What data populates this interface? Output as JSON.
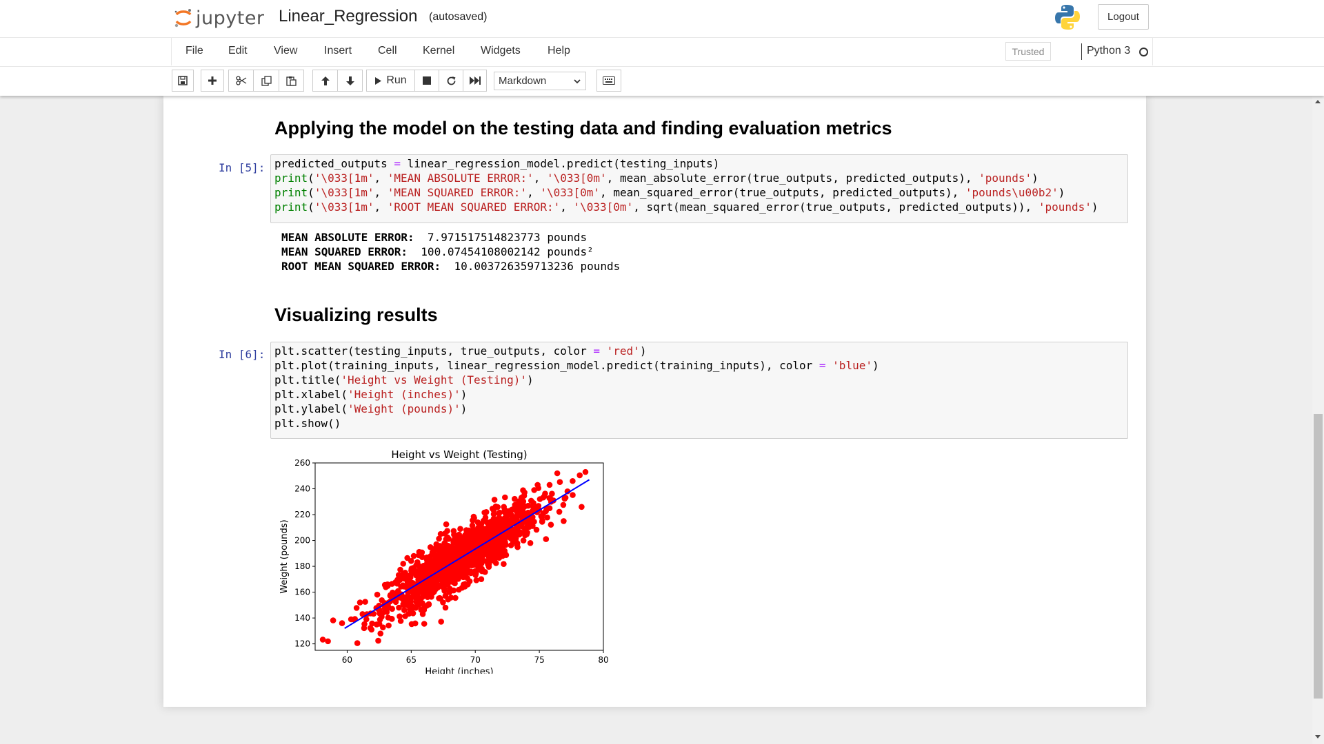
{
  "header": {
    "logo_text": "jupyter",
    "notebook_name": "Linear_Regression",
    "autosave_status": "(autosaved)",
    "logout_label": "Logout"
  },
  "menubar": {
    "items": [
      "File",
      "Edit",
      "View",
      "Insert",
      "Cell",
      "Kernel",
      "Widgets",
      "Help"
    ],
    "trusted_label": "Trusted",
    "kernel_name": "Python 3"
  },
  "toolbar": {
    "run_label": "Run",
    "cell_type": "Markdown"
  },
  "cells": {
    "heading1": "Applying the model on the testing data and finding evaluation metrics",
    "cell5": {
      "prompt": "In [5]:",
      "output": [
        {
          "label": "MEAN ABSOLUTE ERROR:",
          "value": "7.971517514823773 pounds"
        },
        {
          "label": "MEAN SQUARED ERROR:",
          "value": "100.07454108002142 pounds²"
        },
        {
          "label": "ROOT MEAN SQUARED ERROR:",
          "value": "10.003726359713236 pounds"
        }
      ]
    },
    "heading2": "Visualizing results",
    "cell6": {
      "prompt": "In [6]:"
    }
  },
  "icons": {
    "save": "save-icon",
    "add": "plus-icon",
    "cut": "scissors-icon",
    "copy": "copy-icon",
    "paste": "paste-icon",
    "up": "arrow-up-icon",
    "down": "arrow-down-icon",
    "run": "play-icon",
    "stop": "stop-icon",
    "restart": "restart-icon",
    "fast_forward": "fast-forward-icon",
    "keyboard": "keyboard-icon"
  },
  "colors": {
    "scatter": "#ff0000",
    "line": "#0000ff",
    "prompt": "#303f9f",
    "string": "#ba2121",
    "builtin": "#008000",
    "operator": "#aa22ff"
  },
  "chart_data": {
    "type": "scatter",
    "title": "Height vs Weight (Testing)",
    "xlabel": "Height (inches)",
    "ylabel": "Weight (pounds)",
    "xlim": [
      57.5,
      80
    ],
    "ylim": [
      115,
      260
    ],
    "xticks": [
      60,
      65,
      70,
      75,
      80
    ],
    "yticks": [
      120,
      140,
      160,
      180,
      200,
      220,
      240,
      260
    ],
    "grid": false,
    "series": [
      {
        "kind": "scatter",
        "color": "#ff0000",
        "points": [
          [
            58.5,
            122
          ],
          [
            59.6,
            136
          ],
          [
            61,
            152
          ],
          [
            61.2,
            143
          ],
          [
            61.5,
            139
          ],
          [
            61.9,
            131
          ],
          [
            62.3,
            135
          ],
          [
            62.6,
            128
          ],
          [
            78.3,
            226
          ],
          [
            78.6,
            253
          ],
          [
            77.6,
            246
          ],
          [
            77.2,
            238
          ],
          [
            76.4,
            252
          ],
          [
            75.8,
            243
          ],
          [
            76.1,
            231
          ],
          [
            74.6,
            239
          ],
          [
            72.3,
            212
          ],
          [
            69.3,
            208
          ],
          [
            67.3,
            205
          ],
          [
            65.2,
            188
          ],
          [
            66.6,
            173
          ],
          [
            73.3,
            208
          ],
          [
            74.3,
            198
          ],
          [
            71.6,
            200
          ],
          [
            70.2,
            214
          ],
          [
            64.6,
            154
          ],
          [
            63.6,
            156
          ],
          [
            65.9,
            143
          ],
          [
            68.2,
            176
          ],
          [
            71.3,
            196
          ],
          [
            73.6,
            233
          ],
          [
            70.7,
            191
          ],
          [
            67.6,
            161
          ],
          [
            66.2,
            186
          ],
          [
            69.8,
            201
          ],
          [
            72.8,
            220
          ],
          [
            64.2,
            171
          ],
          [
            68.8,
            196
          ],
          [
            75.3,
            221
          ],
          [
            63.2,
            148
          ]
        ]
      },
      {
        "kind": "line",
        "color": "#0000ff",
        "points": [
          [
            59.8,
            132
          ],
          [
            78.9,
            247
          ]
        ]
      }
    ]
  }
}
